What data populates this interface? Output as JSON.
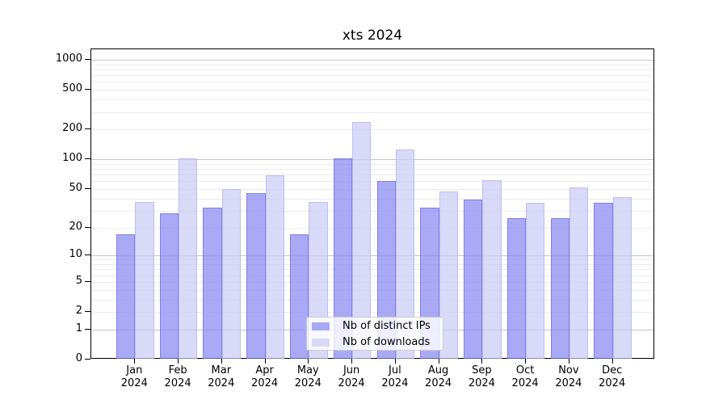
{
  "chart_data": {
    "type": "bar",
    "title": "xts 2024",
    "year": "2024",
    "categories": [
      "Jan",
      "Feb",
      "Mar",
      "Apr",
      "May",
      "Jun",
      "Jul",
      "Aug",
      "Sep",
      "Oct",
      "Nov",
      "Dec"
    ],
    "series": [
      {
        "name": "Nb of distinct IPs",
        "values": [
          17,
          28,
          32,
          45,
          17,
          103,
          60,
          32,
          39,
          25,
          25,
          36
        ],
        "fill": "rgba(132,132,241,0.7)",
        "edge": "rgba(106,106,230,0.65)",
        "swatch": "#a9a9f5"
      },
      {
        "name": "Nb of downloads",
        "values": [
          37,
          103,
          50,
          69,
          37,
          238,
          125,
          47,
          62,
          36,
          52,
          41
        ],
        "fill": "rgba(201,201,245,0.7)",
        "edge": "rgba(175,175,235,0.65)",
        "swatch": "#d9d9f7"
      }
    ],
    "y_scale": "log1p",
    "y_ticks": [
      0,
      1,
      2,
      5,
      10,
      20,
      50,
      100,
      200,
      500,
      1000
    ],
    "ylim": [
      0,
      1280
    ],
    "grid": "horizontal",
    "legend_position": "lower center",
    "colors": {
      "grid_major": "#c6c6c6",
      "grid_minor": "#ececec",
      "axis": "#000000",
      "background": "#ffffff"
    }
  }
}
